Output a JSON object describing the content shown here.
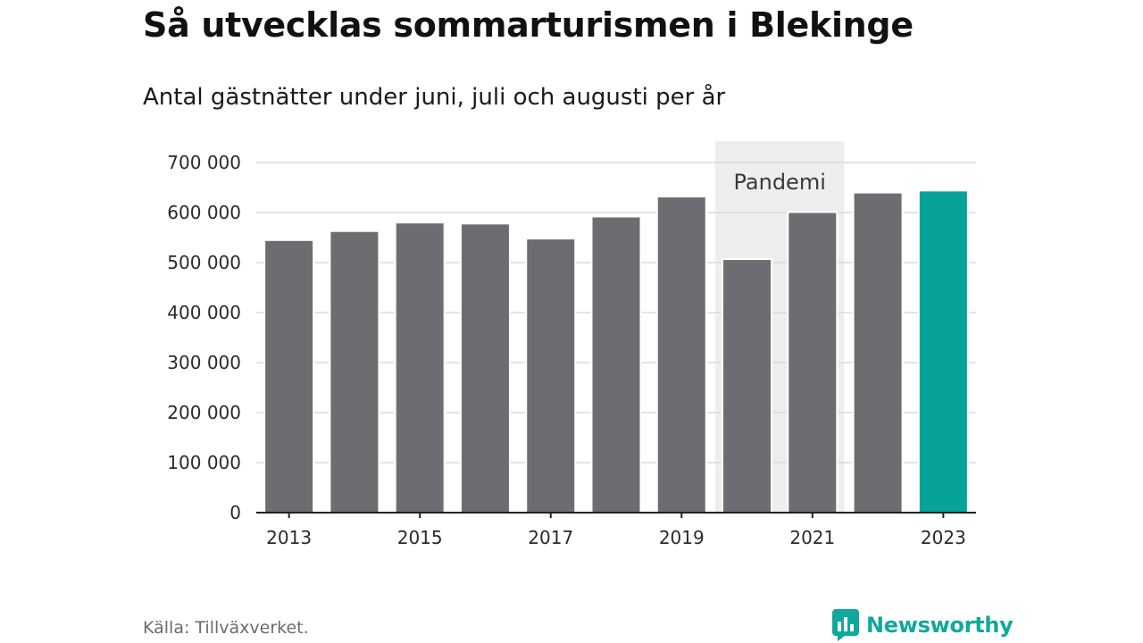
{
  "title": "Så utvecklas sommarturismen i Blekinge",
  "subtitle": "Antal gästnätter under juni, juli och augusti per år",
  "source": "Källa: Tillväxverket.",
  "brand": {
    "name": "Newsworthy",
    "icon": "newsworthy-logo-icon",
    "color": "#12a89b"
  },
  "chart_data": {
    "type": "bar",
    "title": "Så utvecklas sommarturismen i Blekinge",
    "subtitle": "Antal gästnätter under juni, juli och augusti per år",
    "categories": [
      "2013",
      "2014",
      "2015",
      "2016",
      "2017",
      "2018",
      "2019",
      "2020",
      "2021",
      "2022",
      "2023"
    ],
    "x_tick_labels": [
      "2013",
      "2015",
      "2017",
      "2019",
      "2021",
      "2023"
    ],
    "values": [
      545000,
      563000,
      580000,
      578000,
      548000,
      592000,
      632000,
      507000,
      601000,
      640000,
      644000
    ],
    "ylim": [
      0,
      700000
    ],
    "y_ticks": [
      0,
      100000,
      200000,
      300000,
      400000,
      500000,
      600000,
      700000
    ],
    "y_tick_labels": [
      "0",
      "100 000",
      "200 000",
      "300 000",
      "400 000",
      "500 000",
      "600 000",
      "700 000"
    ],
    "grid": true,
    "bar_color": "#6d6c71",
    "highlight_category": "2023",
    "highlight_color": "#07a39a",
    "annotation": {
      "label": "Pandemi",
      "from": "2020",
      "to": "2021",
      "color": "#eeeeee"
    }
  }
}
